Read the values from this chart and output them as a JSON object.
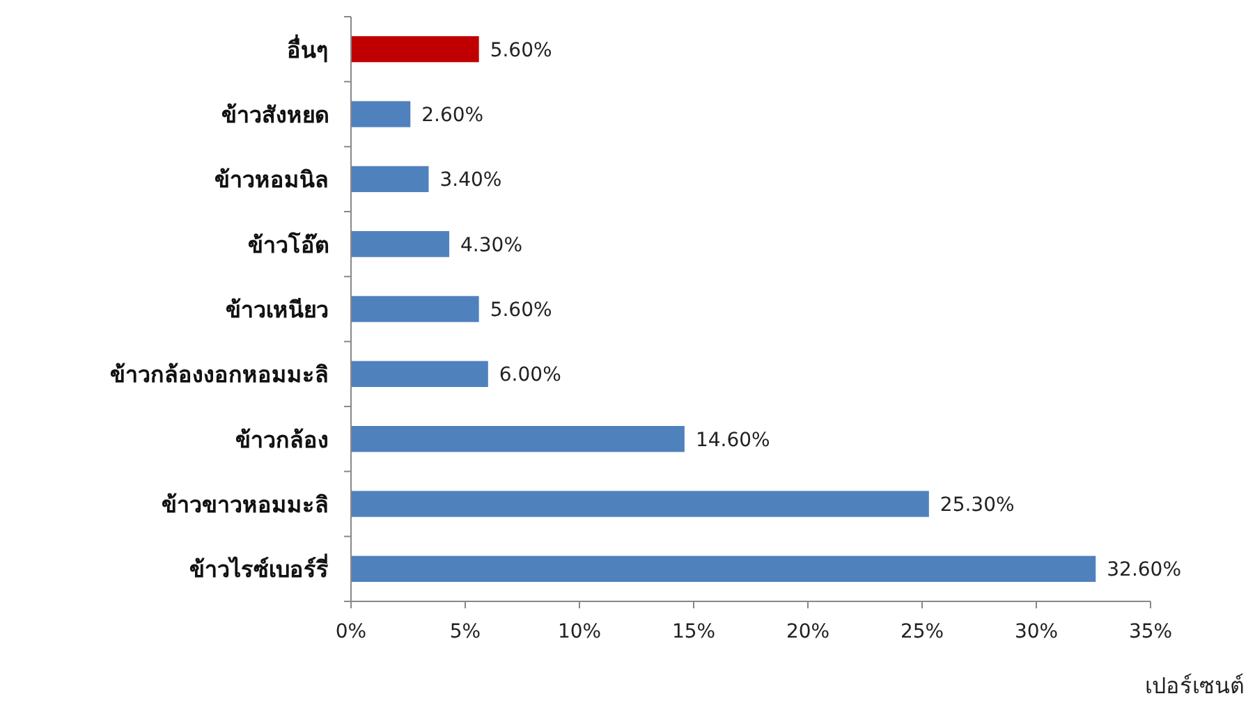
{
  "chart_data": {
    "type": "bar",
    "orientation": "horizontal",
    "categories": [
      "อื่นๆ",
      "ข้าวสังหยด",
      "ข้าวหอมนิล",
      "ข้าวโอ๊ต",
      "ข้าวเหนียว",
      "ข้าวกล้องงอกหอมมะลิ",
      "ข้าวกล้อง",
      "ข้าวขาวหอมมะลิ",
      "ข้าวไรซ์เบอร์รี่"
    ],
    "values": [
      5.6,
      2.6,
      3.4,
      4.3,
      5.6,
      6.0,
      14.6,
      25.3,
      32.6
    ],
    "value_labels": [
      "5.60%",
      "2.60%",
      "3.40%",
      "4.30%",
      "5.60%",
      "6.00%",
      "14.60%",
      "25.30%",
      "32.60%"
    ],
    "colors": [
      "#c00000",
      "#4f81bd",
      "#4f81bd",
      "#4f81bd",
      "#4f81bd",
      "#4f81bd",
      "#4f81bd",
      "#4f81bd",
      "#4f81bd"
    ],
    "xlim": [
      0,
      35
    ],
    "xticks": [
      {
        "value": 0,
        "label": "0%"
      },
      {
        "value": 5,
        "label": "5%"
      },
      {
        "value": 10,
        "label": "10%"
      },
      {
        "value": 15,
        "label": "15%"
      },
      {
        "value": 20,
        "label": "20%"
      },
      {
        "value": 25,
        "label": "25%"
      },
      {
        "value": 30,
        "label": "30%"
      },
      {
        "value": 35,
        "label": "35%"
      }
    ],
    "xlabel": "เปอร์เซนต์"
  }
}
